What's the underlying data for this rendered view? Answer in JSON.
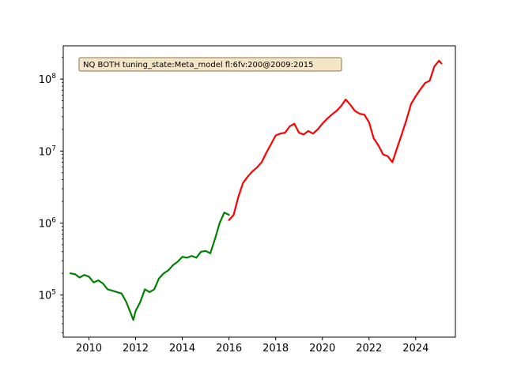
{
  "chart_data": {
    "type": "line",
    "title": "",
    "xlabel": "",
    "ylabel": "",
    "yscale": "log",
    "xlim": [
      2008.9,
      2025.7
    ],
    "ylim": [
      26000,
      290000000
    ],
    "grid": false,
    "x_ticks": [
      {
        "value": 2010,
        "label": "2010"
      },
      {
        "value": 2012,
        "label": "2012"
      },
      {
        "value": 2014,
        "label": "2014"
      },
      {
        "value": 2016,
        "label": "2016"
      },
      {
        "value": 2018,
        "label": "2018"
      },
      {
        "value": 2020,
        "label": "2020"
      },
      {
        "value": 2022,
        "label": "2022"
      },
      {
        "value": 2024,
        "label": "2024"
      }
    ],
    "y_ticks": [
      {
        "value": 100000,
        "base": "10",
        "exp": "5"
      },
      {
        "value": 1000000,
        "base": "10",
        "exp": "6"
      },
      {
        "value": 10000000,
        "base": "10",
        "exp": "7"
      },
      {
        "value": 100000000,
        "base": "10",
        "exp": "8"
      }
    ],
    "annotation": {
      "text": "NQ BOTH tuning_state:Meta_model fl:6fv:200@2009:2015",
      "position": "top-left",
      "facecolor": "#f5e6c8",
      "edgecolor": "#8b7355"
    },
    "series": [
      {
        "color": "#008000",
        "points": [
          [
            2009.2,
            200000
          ],
          [
            2009.4,
            195000
          ],
          [
            2009.6,
            175000
          ],
          [
            2009.8,
            190000
          ],
          [
            2010.0,
            180000
          ],
          [
            2010.2,
            150000
          ],
          [
            2010.4,
            160000
          ],
          [
            2010.6,
            145000
          ],
          [
            2010.8,
            120000
          ],
          [
            2011.0,
            115000
          ],
          [
            2011.2,
            110000
          ],
          [
            2011.4,
            105000
          ],
          [
            2011.6,
            80000
          ],
          [
            2011.8,
            55000
          ],
          [
            2011.9,
            45000
          ],
          [
            2012.0,
            60000
          ],
          [
            2012.2,
            80000
          ],
          [
            2012.4,
            120000
          ],
          [
            2012.6,
            110000
          ],
          [
            2012.8,
            120000
          ],
          [
            2013.0,
            170000
          ],
          [
            2013.2,
            200000
          ],
          [
            2013.4,
            220000
          ],
          [
            2013.6,
            260000
          ],
          [
            2013.8,
            290000
          ],
          [
            2014.0,
            340000
          ],
          [
            2014.2,
            330000
          ],
          [
            2014.4,
            350000
          ],
          [
            2014.6,
            330000
          ],
          [
            2014.8,
            400000
          ],
          [
            2015.0,
            410000
          ],
          [
            2015.2,
            380000
          ],
          [
            2015.4,
            600000
          ],
          [
            2015.6,
            1000000
          ],
          [
            2015.8,
            1400000
          ],
          [
            2016.0,
            1300000
          ]
        ]
      },
      {
        "color": "#ff0000",
        "points": [
          [
            2016.0,
            1100000
          ],
          [
            2016.2,
            1300000
          ],
          [
            2016.4,
            2300000
          ],
          [
            2016.6,
            3600000
          ],
          [
            2016.8,
            4400000
          ],
          [
            2017.0,
            5200000
          ],
          [
            2017.2,
            5900000
          ],
          [
            2017.4,
            7000000
          ],
          [
            2017.6,
            9500000
          ],
          [
            2017.8,
            12500000
          ],
          [
            2018.0,
            16500000
          ],
          [
            2018.2,
            17500000
          ],
          [
            2018.4,
            18000000
          ],
          [
            2018.6,
            22000000
          ],
          [
            2018.8,
            24000000
          ],
          [
            2019.0,
            18000000
          ],
          [
            2019.2,
            17000000
          ],
          [
            2019.4,
            19000000
          ],
          [
            2019.6,
            17500000
          ],
          [
            2019.8,
            20000000
          ],
          [
            2020.0,
            24000000
          ],
          [
            2020.2,
            28000000
          ],
          [
            2020.4,
            32000000
          ],
          [
            2020.6,
            36000000
          ],
          [
            2020.8,
            42000000
          ],
          [
            2021.0,
            52000000
          ],
          [
            2021.2,
            44000000
          ],
          [
            2021.4,
            36000000
          ],
          [
            2021.6,
            33000000
          ],
          [
            2021.8,
            32000000
          ],
          [
            2022.0,
            25000000
          ],
          [
            2022.2,
            15000000
          ],
          [
            2022.4,
            12000000
          ],
          [
            2022.6,
            9000000
          ],
          [
            2022.8,
            8500000
          ],
          [
            2023.0,
            7000000
          ],
          [
            2023.2,
            11000000
          ],
          [
            2023.4,
            17000000
          ],
          [
            2023.6,
            27000000
          ],
          [
            2023.8,
            45000000
          ],
          [
            2024.0,
            58000000
          ],
          [
            2024.2,
            72000000
          ],
          [
            2024.4,
            88000000
          ],
          [
            2024.6,
            95000000
          ],
          [
            2024.8,
            150000000
          ],
          [
            2025.0,
            180000000
          ],
          [
            2025.1,
            165000000
          ]
        ]
      }
    ]
  }
}
